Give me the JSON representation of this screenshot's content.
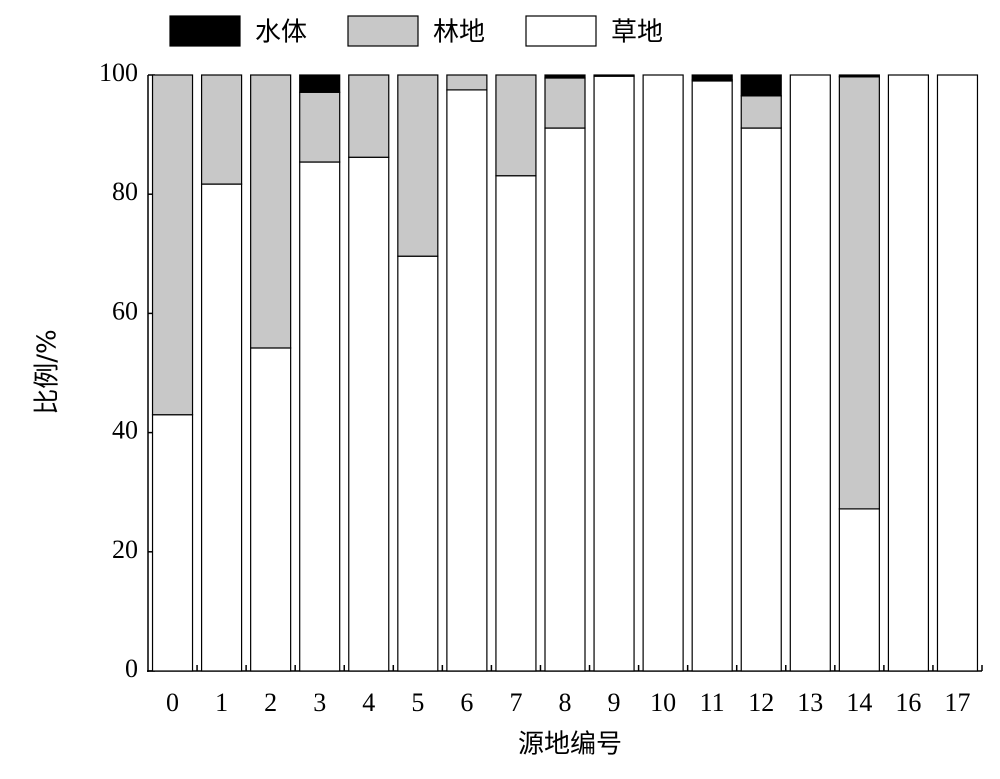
{
  "chart_data": {
    "type": "stacked_bar",
    "x_label": "源地编号",
    "y_label": "比例/%",
    "categories": [
      "0",
      "1",
      "2",
      "3",
      "4",
      "5",
      "6",
      "7",
      "8",
      "9",
      "10",
      "11",
      "12",
      "13",
      "14",
      "16",
      "17"
    ],
    "series": [
      {
        "name": "水体",
        "color": "#000000",
        "values": [
          0,
          0,
          0,
          2.9,
          0,
          0,
          0,
          0,
          0.5,
          0,
          0,
          0.8,
          3.5,
          0,
          0.3,
          0,
          0
        ]
      },
      {
        "name": "林地",
        "color": "#c8c8c8",
        "values": [
          57,
          18.3,
          45.8,
          11.7,
          13.8,
          30.4,
          2.5,
          16.9,
          8.4,
          0.2,
          0,
          0.2,
          5.4,
          0,
          72.5,
          0,
          0
        ]
      },
      {
        "name": "草地",
        "color": "#ffffff",
        "values": [
          43,
          81.7,
          54.2,
          85.4,
          86.2,
          69.6,
          97.5,
          83.1,
          91.1,
          99.8,
          100,
          99,
          91.1,
          100,
          27.2,
          100,
          100
        ]
      }
    ],
    "ylim": [
      0,
      100
    ],
    "yticks": [
      0,
      20,
      40,
      60,
      80,
      100
    ],
    "legend": "top"
  }
}
